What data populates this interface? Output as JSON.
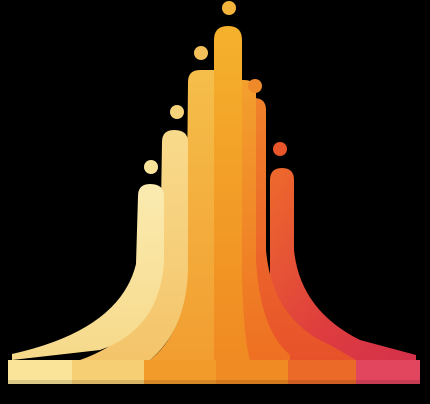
{
  "artwork": {
    "kind": "logo",
    "description_label": "",
    "background": "#000000",
    "palette": {
      "cream": "#F9E49A",
      "pale_gold": "#F6D27A",
      "amber": "#F4B43C",
      "orange": "#F19A2A",
      "deep_orange": "#EE7722",
      "red_orange": "#E8552A",
      "crimson": "#D9304A",
      "pink_red": "#E2455E"
    },
    "bars": [
      {
        "id": "bar-1",
        "color_key": "cream"
      },
      {
        "id": "bar-2",
        "color_key": "pale_gold"
      },
      {
        "id": "bar-3",
        "color_key": "amber"
      },
      {
        "id": "bar-4",
        "color_key": "orange"
      },
      {
        "id": "bar-5",
        "color_key": "deep_orange"
      },
      {
        "id": "bar-6",
        "color_key": "red_orange"
      },
      {
        "id": "bar-7",
        "color_key": "crimson"
      }
    ],
    "dots": [
      {
        "id": "dot-1",
        "color_key": "cream"
      },
      {
        "id": "dot-2",
        "color_key": "pale_gold"
      },
      {
        "id": "dot-3",
        "color_key": "amber"
      },
      {
        "id": "dot-4",
        "color_key": "orange"
      },
      {
        "id": "dot-5",
        "color_key": "red_orange"
      },
      {
        "id": "dot-6",
        "color_key": "red_orange"
      }
    ]
  }
}
